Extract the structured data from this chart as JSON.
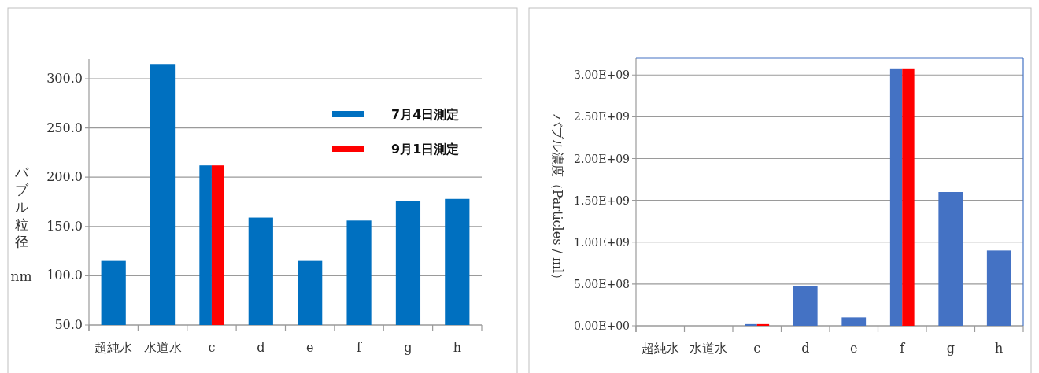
{
  "chart_data": [
    {
      "type": "bar",
      "ylabel": "バブル粒径　nm",
      "categories": [
        "超純水",
        "水道水",
        "c",
        "d",
        "e",
        "f",
        "g",
        "h"
      ],
      "series": [
        {
          "name": "7月4日測定",
          "color": "#0070c0",
          "values": [
            115,
            315,
            212,
            159,
            115,
            156,
            176,
            178
          ]
        },
        {
          "name": "9月1日測定",
          "color": "#ff0000",
          "values": [
            null,
            null,
            212,
            null,
            null,
            null,
            null,
            null
          ]
        }
      ],
      "ylim": [
        50,
        320
      ],
      "yticks": [
        {
          "value": 50,
          "label": "50.0"
        },
        {
          "value": 100,
          "label": "100.0"
        },
        {
          "value": 150,
          "label": "150.0"
        },
        {
          "value": 200,
          "label": "200.0"
        },
        {
          "value": 250,
          "label": "250.0"
        },
        {
          "value": 300,
          "label": "300.0"
        }
      ],
      "grid": "y",
      "legend": "top right"
    },
    {
      "type": "bar",
      "ylabel": "バブル濃度（Particles / ml）",
      "categories": [
        "超純水",
        "水道水",
        "c",
        "d",
        "e",
        "f",
        "g",
        "h"
      ],
      "series": [
        {
          "color": "#4472c4",
          "values": [
            0,
            0,
            20000000,
            480000000,
            100000000,
            3070000000,
            1600000000,
            900000000
          ]
        },
        {
          "color": "#ff0000",
          "values": [
            null,
            null,
            20000000,
            null,
            null,
            3070000000,
            null,
            null
          ]
        }
      ],
      "ylim": [
        0,
        3200000000
      ],
      "yticks": [
        {
          "value": 0,
          "label": "0.00E+00"
        },
        {
          "value": 500000000,
          "label": "5.00E+08"
        },
        {
          "value": 1000000000,
          "label": "1.00E+09"
        },
        {
          "value": 1500000000,
          "label": "1.50E+09"
        },
        {
          "value": 2000000000,
          "label": "2.00E+09"
        },
        {
          "value": 2500000000,
          "label": "2.50E+09"
        },
        {
          "value": 3000000000,
          "label": "3.00E+09"
        }
      ],
      "grid": "y",
      "legend": false
    }
  ]
}
